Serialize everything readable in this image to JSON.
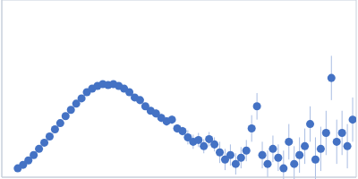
{
  "chart_data": {
    "type": "scatter",
    "marker": "circle",
    "color": "#4472c4",
    "grid": true,
    "tick_labels": false,
    "xlim": [
      0,
      0.4
    ],
    "xticks": [
      0.115
    ],
    "ylim": [
      0,
      2
    ],
    "yticks": [
      1
    ],
    "x": [
      0.018,
      0.024,
      0.03,
      0.036,
      0.042,
      0.048,
      0.054,
      0.06,
      0.066,
      0.072,
      0.078,
      0.084,
      0.09,
      0.096,
      0.102,
      0.108,
      0.114,
      0.12,
      0.126,
      0.132,
      0.138,
      0.144,
      0.15,
      0.156,
      0.162,
      0.168,
      0.174,
      0.18,
      0.186,
      0.192,
      0.198,
      0.204,
      0.21,
      0.216,
      0.222,
      0.228,
      0.234,
      0.24,
      0.246,
      0.252,
      0.258,
      0.264,
      0.27,
      0.276,
      0.282,
      0.288,
      0.294,
      0.3,
      0.306,
      0.312,
      0.318,
      0.324,
      0.33,
      0.336,
      0.342,
      0.348,
      0.354,
      0.36,
      0.366,
      0.372,
      0.378,
      0.384,
      0.39,
      0.396
    ],
    "values": [
      0.1,
      0.14,
      0.19,
      0.25,
      0.32,
      0.39,
      0.46,
      0.54,
      0.61,
      0.69,
      0.76,
      0.83,
      0.89,
      0.96,
      1.0,
      1.03,
      1.05,
      1.04,
      1.05,
      1.03,
      1.0,
      0.96,
      0.9,
      0.87,
      0.8,
      0.75,
      0.72,
      0.67,
      0.63,
      0.65,
      0.55,
      0.52,
      0.45,
      0.4,
      0.42,
      0.35,
      0.43,
      0.37,
      0.28,
      0.2,
      0.25,
      0.15,
      0.22,
      0.3,
      0.55,
      0.8,
      0.25,
      0.15,
      0.32,
      0.22,
      0.1,
      0.4,
      0.15,
      0.25,
      0.35,
      0.6,
      0.2,
      0.32,
      0.5,
      1.12,
      0.4,
      0.5,
      0.35,
      0.65
    ],
    "errors": [
      0.01,
      0.01,
      0.01,
      0.01,
      0.01,
      0.01,
      0.01,
      0.01,
      0.01,
      0.01,
      0.01,
      0.01,
      0.01,
      0.01,
      0.02,
      0.02,
      0.02,
      0.02,
      0.02,
      0.02,
      0.03,
      0.03,
      0.03,
      0.03,
      0.03,
      0.03,
      0.05,
      0.05,
      0.05,
      0.05,
      0.05,
      0.05,
      0.08,
      0.08,
      0.08,
      0.08,
      0.08,
      0.08,
      0.12,
      0.12,
      0.12,
      0.12,
      0.12,
      0.12,
      0.15,
      0.15,
      0.15,
      0.15,
      0.15,
      0.15,
      0.2,
      0.2,
      0.2,
      0.2,
      0.2,
      0.2,
      0.25,
      0.25,
      0.25,
      0.25,
      0.25,
      0.25,
      0.25,
      0.25
    ]
  }
}
